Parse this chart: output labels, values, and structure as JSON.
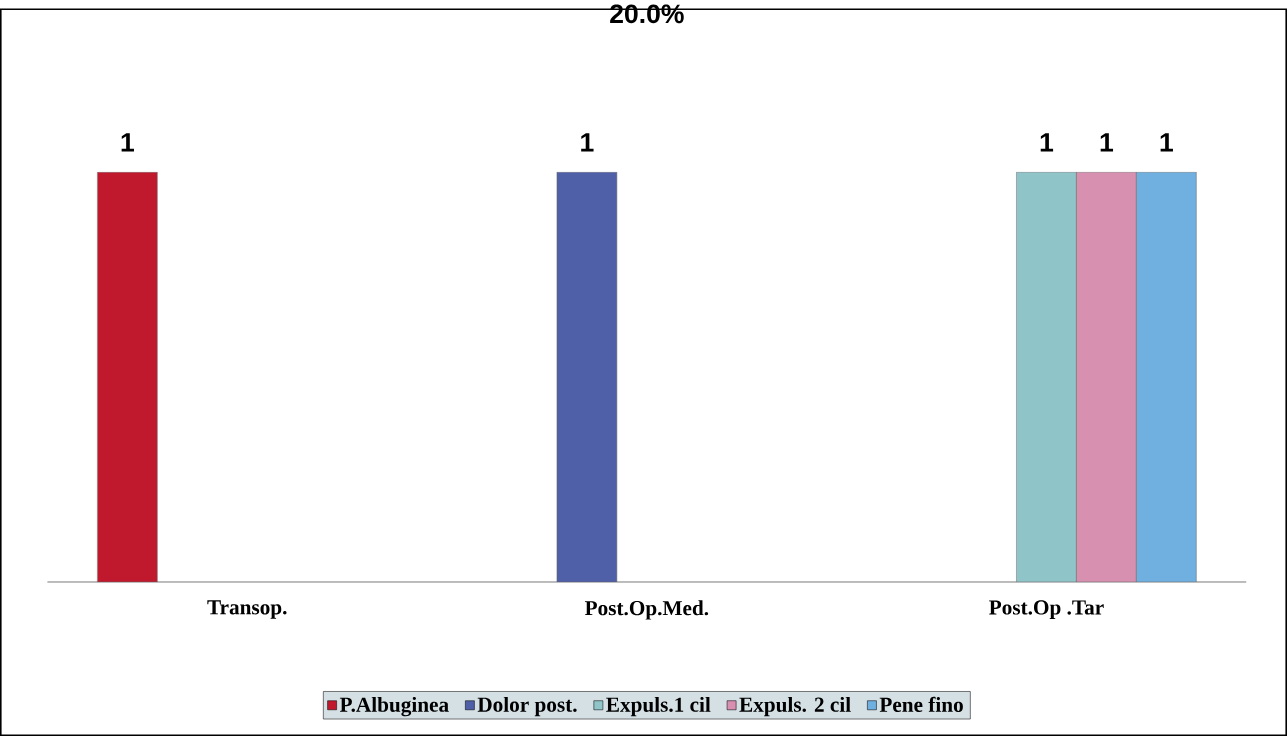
{
  "chart_data": {
    "type": "bar",
    "title": "20.0%",
    "categories": [
      "Transop.",
      "Post.Op.Med.",
      "Post.Op .Tar"
    ],
    "series": [
      {
        "name": "P.Albuginea",
        "color": "#c0192e",
        "values": [
          1,
          null,
          null
        ]
      },
      {
        "name": "Dolor post.",
        "color": "#4f5fa8",
        "values": [
          null,
          1,
          null
        ]
      },
      {
        "name": "Expuls.1 cil",
        "color": "#8fc4c8",
        "values": [
          null,
          null,
          1
        ]
      },
      {
        "name": "Expuls. 2 cil",
        "color": "#d890b0",
        "values": [
          null,
          null,
          1
        ]
      },
      {
        "name": "Pene fino",
        "color": "#70b0e0",
        "values": [
          null,
          null,
          1
        ]
      }
    ],
    "data_labels": true,
    "legend": "bottom",
    "tick_labels": "x"
  }
}
